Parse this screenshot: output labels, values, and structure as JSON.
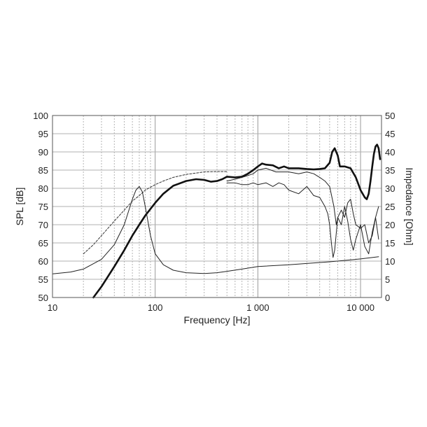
{
  "chart_data": {
    "type": "line",
    "xlabel": "Frequency [Hz]",
    "ylabel": "SPL [dB]",
    "y2label": "Impedance [Ohm]",
    "xscale": "log",
    "xlim": [
      10,
      16000
    ],
    "ylim": [
      50,
      100
    ],
    "y2lim": [
      0,
      50
    ],
    "grid": true,
    "x_ticks": [
      {
        "value": 10,
        "label": "10"
      },
      {
        "value": 100,
        "label": "100"
      },
      {
        "value": 1000,
        "label": "1 000"
      },
      {
        "value": 10000,
        "label": "10 000"
      }
    ],
    "y_ticks": [
      {
        "value": 50,
        "label": "50"
      },
      {
        "value": 55,
        "label": "55"
      },
      {
        "value": 60,
        "label": "60"
      },
      {
        "value": 65,
        "label": "65"
      },
      {
        "value": 70,
        "label": "70"
      },
      {
        "value": 75,
        "label": "75"
      },
      {
        "value": 80,
        "label": "80"
      },
      {
        "value": 85,
        "label": "85"
      },
      {
        "value": 90,
        "label": "90"
      },
      {
        "value": 95,
        "label": "95"
      },
      {
        "value": 100,
        "label": "100"
      }
    ],
    "y2_ticks": [
      {
        "value": 0,
        "label": "0"
      },
      {
        "value": 5,
        "label": "5"
      },
      {
        "value": 10,
        "label": "10"
      },
      {
        "value": 15,
        "label": "15"
      },
      {
        "value": 20,
        "label": "20"
      },
      {
        "value": 25,
        "label": "25"
      },
      {
        "value": 30,
        "label": "30"
      },
      {
        "value": 35,
        "label": "35"
      },
      {
        "value": 40,
        "label": "40"
      },
      {
        "value": 45,
        "label": "45"
      },
      {
        "value": 50,
        "label": "50"
      }
    ],
    "series": [
      {
        "axis": "left",
        "style": "thick",
        "x": [
          25,
          30,
          40,
          50,
          60,
          70,
          80,
          100,
          120,
          150,
          200,
          250,
          300,
          350,
          400,
          450,
          500,
          600,
          700,
          800,
          900,
          1000,
          1100,
          1200,
          1400,
          1600,
          1800,
          2000,
          2500,
          3000,
          3500,
          4000,
          4500,
          5000,
          5300,
          5600,
          6000,
          6300,
          7000,
          8000,
          9000,
          10000,
          11000,
          11500,
          12000,
          12500,
          13000,
          13500,
          14000,
          14500,
          15000,
          15500
        ],
        "y": [
          50,
          53,
          58.5,
          63,
          67,
          70,
          72.5,
          76,
          78.5,
          80.7,
          82,
          82.5,
          82.3,
          81.8,
          82,
          82.5,
          83.2,
          83,
          83.2,
          84,
          85,
          86,
          86.8,
          86.5,
          86.3,
          85.5,
          86,
          85.5,
          85.5,
          85.3,
          85.2,
          85.3,
          85.5,
          87,
          90,
          91,
          89,
          86,
          86,
          85.5,
          83,
          79.5,
          77.5,
          77,
          78.5,
          82,
          86,
          89.5,
          91.5,
          92,
          91,
          88
        ]
      },
      {
        "axis": "left",
        "style": "thin",
        "x": [
          500,
          600,
          700,
          800,
          900,
          1000,
          1200,
          1500,
          2000,
          2500,
          3000,
          3500,
          4000,
          4500,
          5000,
          5500,
          5800,
          6000,
          6500,
          7000,
          7500,
          8000,
          8500,
          9000,
          10000,
          11000,
          12000,
          13000,
          14000,
          15000
        ],
        "y": [
          82,
          82.5,
          83,
          83.5,
          84,
          85,
          85.5,
          84.5,
          84.5,
          84,
          84.5,
          84,
          83,
          82,
          80.5,
          75,
          70,
          72,
          74,
          72,
          76,
          77,
          73,
          70,
          69,
          70,
          65,
          67,
          72,
          75
        ]
      },
      {
        "axis": "left",
        "style": "thin",
        "x": [
          500,
          600,
          700,
          800,
          900,
          1000,
          1200,
          1400,
          1600,
          1800,
          2000,
          2500,
          3000,
          3500,
          4000,
          4500,
          4800,
          5000,
          5200,
          5400,
          5600,
          6000,
          6500,
          7000,
          7500,
          8000,
          8500,
          9000,
          10000,
          11000,
          12000,
          13000,
          14000,
          15000
        ],
        "y": [
          81.5,
          81.5,
          81,
          81,
          81.5,
          81,
          81.5,
          80.5,
          81.5,
          81,
          79.5,
          78.5,
          80.5,
          78,
          77.5,
          75,
          73,
          70,
          65,
          61,
          63,
          72,
          70,
          75,
          71,
          66,
          63,
          66,
          70,
          64,
          62,
          68,
          72,
          66
        ]
      },
      {
        "axis": "left",
        "style": "dashed",
        "x": [
          20,
          25,
          30,
          40,
          50,
          60,
          70,
          80,
          100,
          120,
          150,
          200,
          250,
          300,
          400,
          500
        ],
        "y": [
          62,
          64.5,
          67,
          71,
          74,
          76.5,
          78,
          79.5,
          81,
          82,
          83,
          83.8,
          84.2,
          84.5,
          84.6,
          84.6
        ]
      },
      {
        "axis": "right",
        "style": "thin",
        "x": [
          10,
          15,
          20,
          30,
          40,
          50,
          60,
          65,
          70,
          75,
          80,
          90,
          100,
          120,
          150,
          200,
          300,
          400,
          500,
          700,
          1000,
          2000,
          5000,
          10000,
          15000
        ],
        "y": [
          6.5,
          7,
          7.8,
          10.5,
          14.5,
          20,
          27,
          29.5,
          30.5,
          29,
          25,
          17,
          12,
          9,
          7.5,
          6.8,
          6.6,
          6.8,
          7.2,
          7.8,
          8.5,
          9,
          9.8,
          10.6,
          11.2
        ]
      }
    ]
  }
}
